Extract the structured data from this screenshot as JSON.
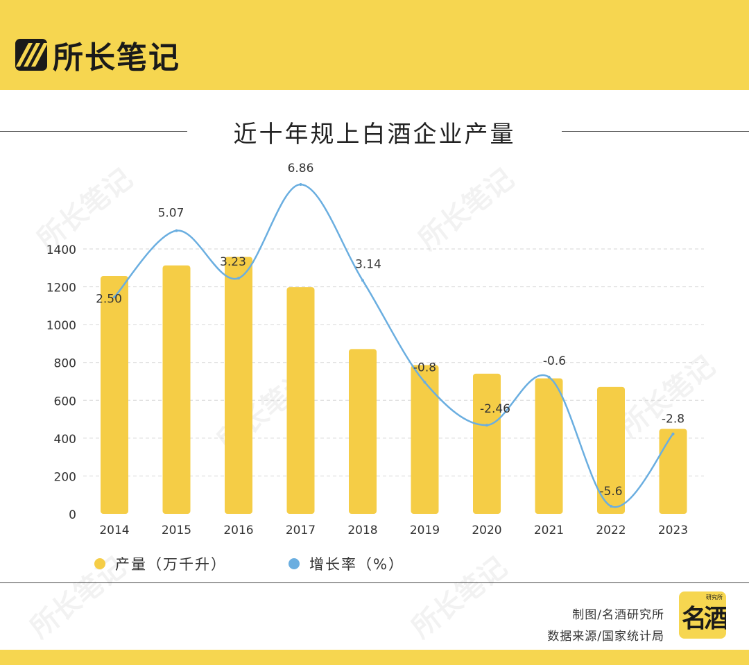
{
  "brand": {
    "name": "所长笔记"
  },
  "chart_data": {
    "type": "bar",
    "title": "近十年规上白酒企业产量",
    "categories": [
      "2014",
      "2015",
      "2016",
      "2017",
      "2018",
      "2019",
      "2020",
      "2021",
      "2022",
      "2023"
    ],
    "series": [
      {
        "name": "产量（万千升）",
        "kind": "bar",
        "color": "#f5cd46",
        "values": [
          1257,
          1313,
          1358,
          1198,
          871,
          786,
          741,
          716,
          671,
          449
        ]
      },
      {
        "name": "增长率（%）",
        "kind": "line",
        "color": "#6aaee0",
        "values": [
          2.5,
          5.07,
          3.23,
          6.86,
          3.14,
          -0.8,
          -2.46,
          -0.6,
          -5.6,
          -2.8
        ],
        "labels": [
          "2.50",
          "5.07",
          "3.23",
          "6.86",
          "3.14",
          "-0.8",
          "-2.46",
          "-0.6",
          "-5.6",
          "-2.8"
        ]
      }
    ],
    "yticks": [
      "0",
      "200",
      "400",
      "600",
      "800",
      "1000",
      "1200",
      "1400"
    ],
    "ylim": [
      0,
      1400
    ],
    "grid": true,
    "legend": "bottom-left"
  },
  "credits": {
    "made_by": "制图/名酒研究所",
    "source": "数据来源/国家统计局"
  },
  "badge": {
    "main": "名酒",
    "small": "研究所"
  },
  "watermark": "所长笔记"
}
